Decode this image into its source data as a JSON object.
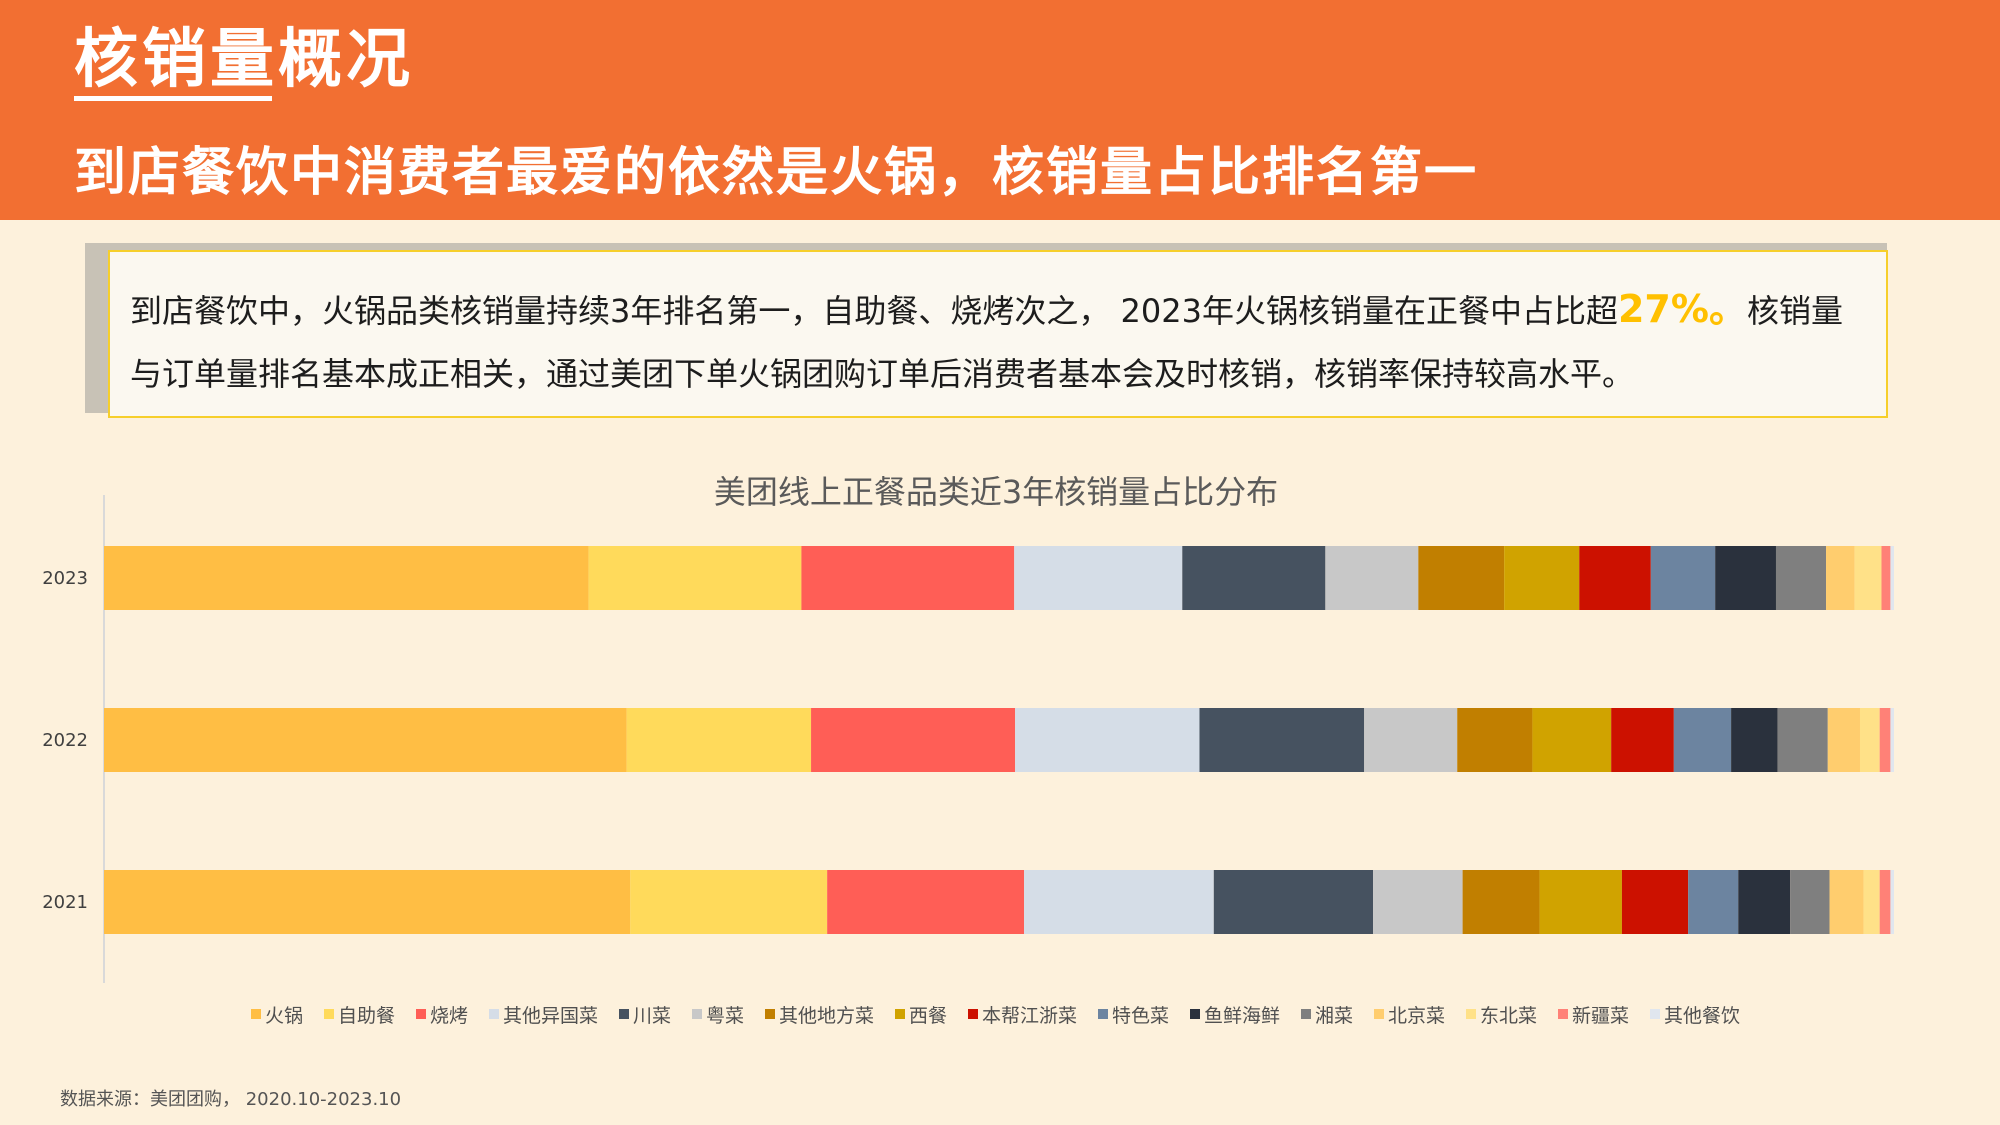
{
  "header": {
    "title": "核销量概况",
    "subtitle": "到店餐饮中消费者最爱的依然是火锅，核销量占比排名第一"
  },
  "summary": {
    "text_before": "到店餐饮中，火锅品类核销量持续3年排名第一，自助餐、烧烤次之， 2023年火锅核销量在正餐中占比超",
    "highlight": "27%。",
    "text_after": "核销量与订单量排名基本成正相关，通过美团下单火锅团购订单后消费者基本会及时核销，核销率保持较高水平。"
  },
  "source": "数据来源：美团团购，  2020.10-2023.10",
  "chart_data": {
    "type": "bar",
    "orientation": "horizontal",
    "stacked": "percent",
    "title": "美团线上正餐品类近3年核销量占比分布",
    "categories": [
      "2023",
      "2022",
      "2021"
    ],
    "series": [
      {
        "name": "火锅",
        "color": "#ffbe44",
        "values": [
          27.1,
          29.2,
          29.4
        ]
      },
      {
        "name": "自助餐",
        "color": "#ffda5b",
        "values": [
          11.9,
          10.3,
          11.0
        ]
      },
      {
        "name": "烧烤",
        "color": "#ff5e56",
        "values": [
          11.9,
          11.4,
          11.0
        ]
      },
      {
        "name": "其他异国菜",
        "color": "#d5dde7",
        "values": [
          9.4,
          10.3,
          10.6
        ]
      },
      {
        "name": "川菜",
        "color": "#465260",
        "values": [
          8.0,
          9.2,
          8.9
        ]
      },
      {
        "name": "粤菜",
        "color": "#c8c8c8",
        "values": [
          5.2,
          5.2,
          5.0
        ]
      },
      {
        "name": "其他地方菜",
        "color": "#c17f00",
        "values": [
          4.8,
          4.2,
          4.3
        ]
      },
      {
        "name": "西餐",
        "color": "#d0a300",
        "values": [
          4.2,
          4.4,
          4.6
        ]
      },
      {
        "name": "本帮江浙菜",
        "color": "#cc1100",
        "values": [
          4.0,
          3.5,
          3.7
        ]
      },
      {
        "name": "特色菜",
        "color": "#6c84a0",
        "values": [
          3.6,
          3.2,
          2.8
        ]
      },
      {
        "name": "鱼鲜海鲜",
        "color": "#2a313d",
        "values": [
          3.4,
          2.6,
          2.9
        ]
      },
      {
        "name": "湘菜",
        "color": "#7f7f7f",
        "values": [
          2.8,
          2.8,
          2.2
        ]
      },
      {
        "name": "北京菜",
        "color": "#ffcd6e",
        "values": [
          1.6,
          1.8,
          1.9
        ]
      },
      {
        "name": "东北菜",
        "color": "#ffe188",
        "values": [
          1.5,
          1.1,
          0.9
        ]
      },
      {
        "name": "新疆菜",
        "color": "#ff8177",
        "values": [
          0.5,
          0.6,
          0.6
        ]
      },
      {
        "name": "其他餐饮",
        "color": "#e0e6ee",
        "values": [
          0.2,
          0.2,
          0.2
        ]
      }
    ],
    "xlim": [
      0,
      100
    ],
    "grid": false,
    "legend_position": "bottom"
  }
}
